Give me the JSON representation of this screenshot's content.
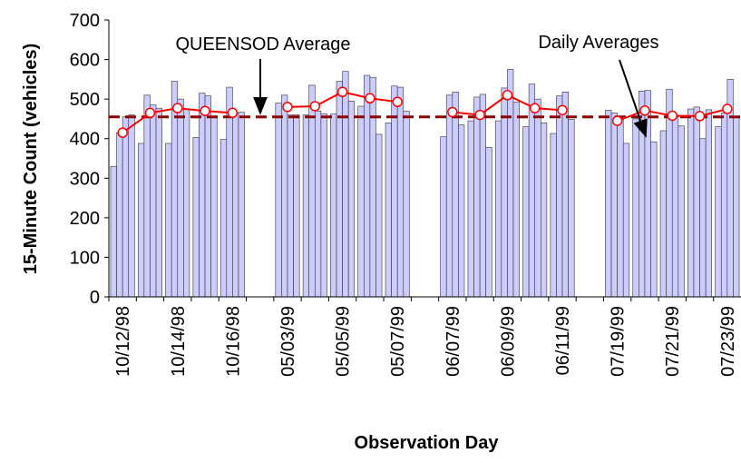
{
  "chart_data": {
    "type": "bar",
    "y_label": "15-Minute Count (vehicles)",
    "x_label": "Observation Day",
    "categories": [
      "10/12/98",
      null,
      "10/14/98",
      null,
      "10/16/98",
      null,
      "05/03/99",
      null,
      "05/05/99",
      null,
      "05/07/99",
      null,
      "06/07/99",
      null,
      "06/09/99",
      null,
      "06/11/99",
      null,
      "07/19/99",
      null,
      "07/21/99",
      null,
      "07/23/99"
    ],
    "bar_color": "#ccccff",
    "bar_series": [
      {
        "values": [
          330,
          388,
          388,
          403,
          398,
          null,
          490,
          460,
          462,
          482,
          440,
          null,
          405,
          445,
          445,
          430,
          413,
          null,
          472,
          450,
          420,
          475,
          430
        ]
      },
      {
        "values": [
          415,
          510,
          545,
          515,
          530,
          null,
          510,
          535,
          545,
          560,
          533,
          null,
          510,
          505,
          528,
          538,
          508,
          null,
          465,
          520,
          525,
          480,
          465
        ]
      },
      {
        "values": [
          455,
          485,
          500,
          508,
          465,
          null,
          460,
          470,
          570,
          555,
          530,
          null,
          518,
          512,
          575,
          500,
          518,
          null,
          455,
          522,
          455,
          400,
          550
        ]
      },
      {
        "values": [
          460,
          477,
          475,
          454,
          467,
          null,
          460,
          463,
          495,
          411,
          469,
          null,
          435,
          378,
          492,
          440,
          449,
          null,
          388,
          392,
          432,
          473,
          455
        ]
      }
    ],
    "line": {
      "color": "#ff0000",
      "values": [
        415,
        465,
        477,
        470,
        465,
        null,
        480,
        482,
        518,
        502,
        493,
        null,
        467,
        460,
        510,
        477,
        472,
        null,
        445,
        471,
        458,
        457,
        475
      ]
    },
    "reference": {
      "value": 455,
      "color": "#8b0000",
      "label": "QUEENSOD Average"
    },
    "line_annotation": "Daily Averages",
    "ylim": [
      0,
      700
    ],
    "yticks": [
      0,
      100,
      200,
      300,
      400,
      500,
      600,
      700
    ]
  }
}
